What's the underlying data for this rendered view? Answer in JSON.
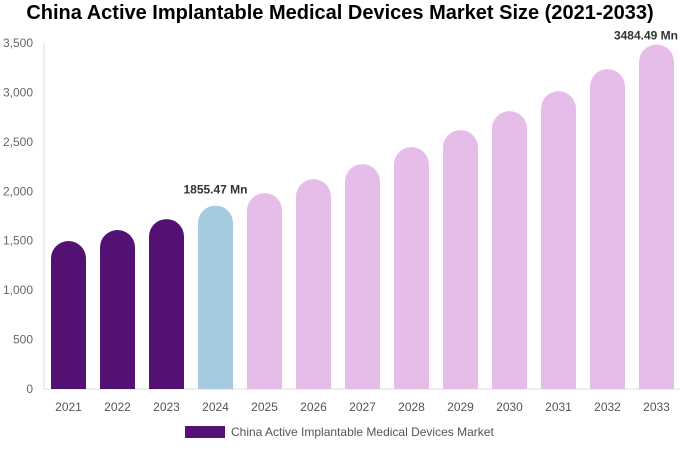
{
  "chart_data": {
    "type": "bar",
    "title": "China Active Implantable Medical Devices Market Size (2021-2033)",
    "categories": [
      "2021",
      "2022",
      "2023",
      "2024",
      "2025",
      "2026",
      "2027",
      "2028",
      "2029",
      "2030",
      "2031",
      "2032",
      "2033"
    ],
    "values": [
      1497,
      1608,
      1719,
      1855.47,
      1982,
      2123,
      2275,
      2447,
      2619,
      2811,
      3013,
      3236,
      3484.49
    ],
    "data_labels": [
      {
        "category": "2024",
        "text": "1855.47 Mn"
      },
      {
        "category": "2033",
        "text": "3484.49 Mn"
      }
    ],
    "ylim": [
      0,
      3500
    ],
    "yticks": [
      0,
      500,
      1000,
      1500,
      2000,
      2500,
      3000,
      3500
    ],
    "ytick_labels": [
      "0",
      "500",
      "1,000",
      "1,500",
      "2,000",
      "2,500",
      "3,000",
      "3,500"
    ],
    "xlabel": "",
    "ylabel": "",
    "grid": false,
    "legend": {
      "position": "bottom",
      "entries": [
        "China Active Implantable Medical Devices Market"
      ]
    },
    "colors": {
      "historical": "#521173",
      "base_year": "#a4cbdf",
      "forecast": "#e6bde8"
    },
    "bar_color_groups": [
      "historical",
      "historical",
      "historical",
      "base_year",
      "forecast",
      "forecast",
      "forecast",
      "forecast",
      "forecast",
      "forecast",
      "forecast",
      "forecast",
      "forecast"
    ]
  }
}
